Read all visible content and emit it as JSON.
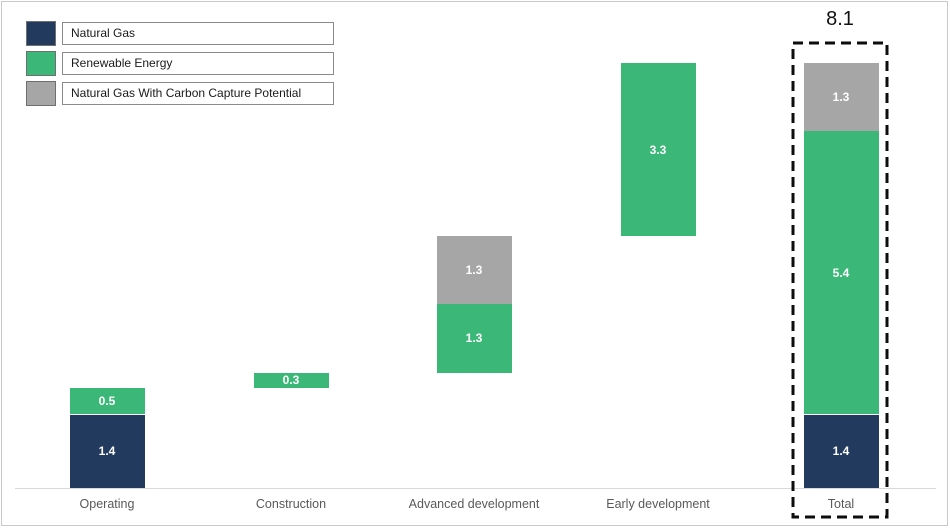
{
  "chart_data": {
    "type": "bar",
    "subtype": "stacked-waterfall",
    "categories": [
      "Operating",
      "Construction",
      "Advanced development",
      "Early development",
      "Total"
    ],
    "legend": [
      {
        "label": "Natural Gas",
        "color": "#223A5E"
      },
      {
        "label": "Renewable Energy",
        "color": "#3BB877"
      },
      {
        "label": "Natural Gas With Carbon Capture Potential",
        "color": "#A6A6A6"
      }
    ],
    "ylim": [
      0,
      8.1
    ],
    "grid": false,
    "legend_position": "top-left",
    "bars": [
      {
        "category": "Operating",
        "start": 0,
        "segments": [
          {
            "series": "Natural Gas",
            "value": 1.4,
            "label": "1.4"
          },
          {
            "series": "Renewable Energy",
            "value": 0.5,
            "label": "0.5"
          }
        ]
      },
      {
        "category": "Construction",
        "start": 1.9,
        "segments": [
          {
            "series": "Renewable Energy",
            "value": 0.3,
            "label": "0.3"
          }
        ]
      },
      {
        "category": "Advanced development",
        "start": 2.2,
        "segments": [
          {
            "series": "Renewable Energy",
            "value": 1.3,
            "label": "1.3"
          },
          {
            "series": "Natural Gas With Carbon Capture Potential",
            "value": 1.3,
            "label": "1.3"
          }
        ]
      },
      {
        "category": "Early development",
        "start": 4.8,
        "segments": [
          {
            "series": "Renewable Energy",
            "value": 3.3,
            "label": "3.3"
          }
        ]
      },
      {
        "category": "Total",
        "start": 0,
        "highlighted": true,
        "segments": [
          {
            "series": "Natural Gas",
            "value": 1.4,
            "label": "1.4"
          },
          {
            "series": "Renewable Energy",
            "value": 5.4,
            "label": "5.4"
          },
          {
            "series": "Natural Gas With Carbon Capture Potential",
            "value": 1.3,
            "label": "1.3"
          }
        ]
      }
    ],
    "total_annotation": {
      "category": "Total",
      "label": "8.1"
    }
  }
}
